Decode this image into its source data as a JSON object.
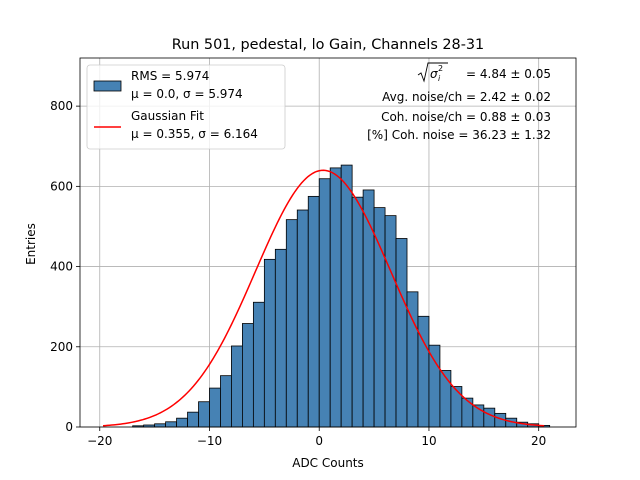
{
  "chart_data": {
    "type": "bar",
    "title": "Run 501, pedestal, lo Gain, Channels 28-31",
    "xlabel": "ADC Counts",
    "ylabel": "Entries",
    "xlim": [
      -21.8,
      23.4
    ],
    "ylim": [
      0,
      920
    ],
    "xticks": [
      -20,
      -10,
      0,
      10,
      20
    ],
    "xtick_labels": [
      "−20",
      "−10",
      "0",
      "10",
      "20"
    ],
    "yticks": [
      0,
      200,
      400,
      600,
      800
    ],
    "ytick_labels": [
      "0",
      "200",
      "400",
      "600",
      "800"
    ],
    "grid": true,
    "bar_color": "#4682b4",
    "fit_color": "#ff0000",
    "histogram": {
      "bin_width": 1,
      "bin_left_edges": [
        -17,
        -16,
        -15,
        -14,
        -13,
        -12,
        -11,
        -10,
        -9,
        -8,
        -7,
        -6,
        -5,
        -4,
        -3,
        -2,
        -1,
        0,
        1,
        2,
        3,
        4,
        5,
        6,
        7,
        8,
        9,
        10,
        11,
        12,
        13,
        14,
        15,
        16,
        17,
        18,
        19,
        20
      ],
      "values": [
        3,
        5,
        8,
        13,
        22,
        37,
        63,
        97,
        128,
        202,
        258,
        311,
        418,
        443,
        517,
        541,
        575,
        619,
        646,
        653,
        573,
        591,
        547,
        527,
        470,
        337,
        276,
        204,
        141,
        101,
        72,
        55,
        47,
        34,
        22,
        12,
        8,
        4
      ]
    },
    "gaussian_fit": {
      "mu": 0.355,
      "sigma": 6.164,
      "amplitude": 640,
      "x_range": [
        -19.7,
        20.5
      ]
    },
    "legend": {
      "placement": "upper-left",
      "entries": [
        {
          "label_line1": "RMS = 5.974",
          "label_line2": "μ = 0.0, σ = 5.974",
          "marker": "patch"
        },
        {
          "label_line1": "Gaussian Fit",
          "label_line2": "μ = 0.355, σ = 6.164",
          "marker": "line"
        }
      ]
    },
    "annotations": {
      "sqrt_sigma_value": "= 4.84 ± 0.05",
      "avg_noise": "Avg. noise/ch = 2.42 ± 0.02",
      "coh_noise": "Coh. noise/ch = 0.88 ± 0.03",
      "coh_noise_pct": "[%] Coh. noise = 36.23 ± 1.32"
    }
  }
}
